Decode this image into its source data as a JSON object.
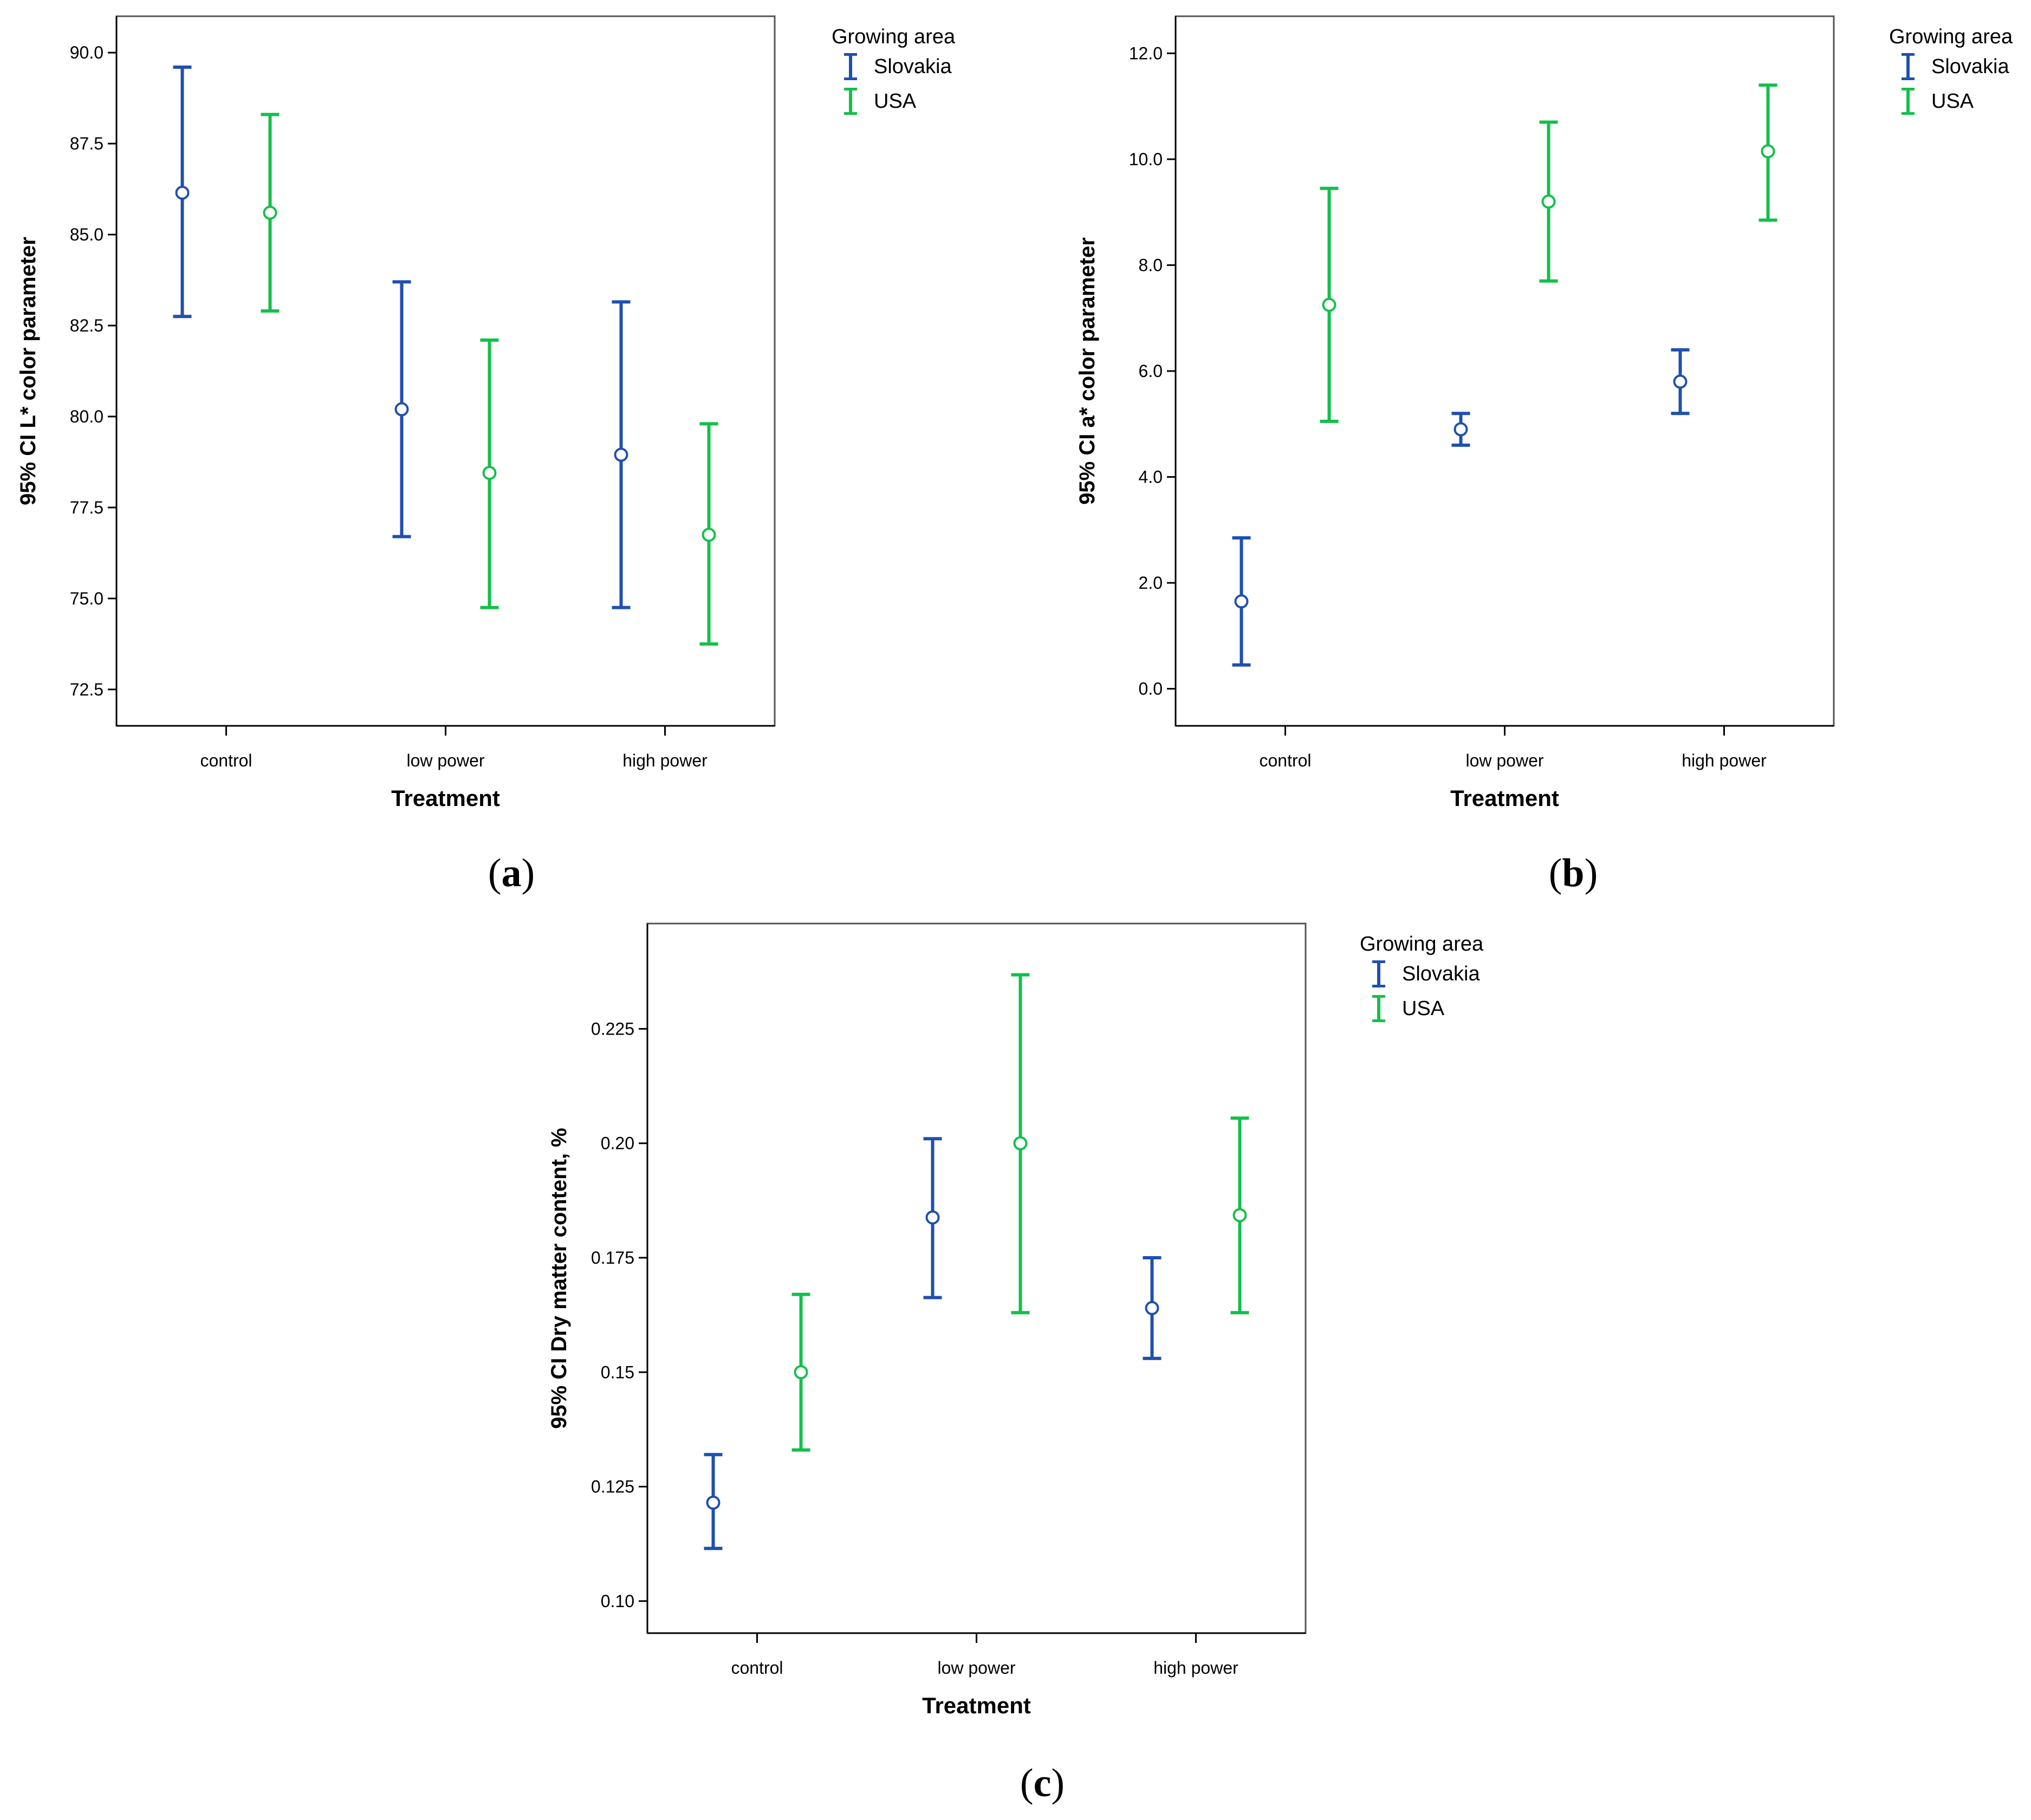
{
  "colors": {
    "slovakia": "#1f4fb0",
    "usa": "#12c04a",
    "axis": "#000000",
    "frame": "#555555"
  },
  "legend": {
    "title": "Growing area",
    "entries": [
      "Slovakia",
      "USA"
    ]
  },
  "panels": [
    {
      "label_open": "(",
      "label_letter": "a",
      "label_close": ")"
    },
    {
      "label_open": "(",
      "label_letter": "b",
      "label_close": ")"
    },
    {
      "label_open": "(",
      "label_letter": "c",
      "label_close": ")"
    }
  ],
  "chart_data": [
    {
      "type": "errorbar",
      "panel": "a",
      "xlabel": "Treatment",
      "ylabel": "95% CI L* color parameter",
      "categories": [
        "control",
        "low power",
        "high power"
      ],
      "ylim": [
        71.5,
        91.0
      ],
      "yticks": [
        72.5,
        75.0,
        77.5,
        80.0,
        82.5,
        85.0,
        87.5,
        90.0
      ],
      "ytick_labels": [
        "72.5",
        "75.0",
        "77.5",
        "80.0",
        "82.5",
        "85.0",
        "87.5",
        "90.0"
      ],
      "series": [
        {
          "name": "Slovakia",
          "means": [
            86.15,
            80.2,
            78.95
          ],
          "lower": [
            82.75,
            76.7,
            74.75
          ],
          "upper": [
            89.6,
            83.7,
            83.15
          ]
        },
        {
          "name": "USA",
          "means": [
            85.6,
            78.45,
            76.75
          ],
          "lower": [
            82.9,
            74.75,
            73.75
          ],
          "upper": [
            88.3,
            82.1,
            79.8
          ]
        }
      ]
    },
    {
      "type": "errorbar",
      "panel": "b",
      "xlabel": "Treatment",
      "ylabel": "95% CI a* color parameter",
      "categories": [
        "control",
        "low power",
        "high power"
      ],
      "ylim": [
        -0.7,
        12.7
      ],
      "yticks": [
        0.0,
        2.0,
        4.0,
        6.0,
        8.0,
        10.0,
        12.0
      ],
      "ytick_labels": [
        "0.0",
        "2.0",
        "4.0",
        "6.0",
        "8.0",
        "10.0",
        "12.0"
      ],
      "series": [
        {
          "name": "Slovakia",
          "means": [
            1.65,
            4.9,
            5.8
          ],
          "lower": [
            0.45,
            4.6,
            5.2
          ],
          "upper": [
            2.85,
            5.2,
            6.4
          ]
        },
        {
          "name": "USA",
          "means": [
            7.25,
            9.2,
            10.15
          ],
          "lower": [
            5.05,
            7.7,
            8.85
          ],
          "upper": [
            9.45,
            10.7,
            11.4
          ]
        }
      ]
    },
    {
      "type": "errorbar",
      "panel": "c",
      "xlabel": "Treatment",
      "ylabel": "95% CI Dry matter content, %",
      "categories": [
        "control",
        "low power",
        "high power"
      ],
      "ylim": [
        0.093,
        0.248
      ],
      "yticks": [
        0.1,
        0.125,
        0.15,
        0.175,
        0.2,
        0.225
      ],
      "ytick_labels": [
        "0.10",
        "0.125",
        "0.15",
        "0.175",
        "0.20",
        "0.225"
      ],
      "series": [
        {
          "name": "Slovakia",
          "means": [
            0.1215,
            0.1838,
            0.164
          ],
          "lower": [
            0.1115,
            0.1663,
            0.153
          ],
          "upper": [
            0.132,
            0.201,
            0.175
          ]
        },
        {
          "name": "USA",
          "means": [
            0.15,
            0.2,
            0.1843
          ],
          "lower": [
            0.133,
            0.163,
            0.163
          ],
          "upper": [
            0.167,
            0.2368,
            0.2055
          ]
        }
      ]
    }
  ]
}
